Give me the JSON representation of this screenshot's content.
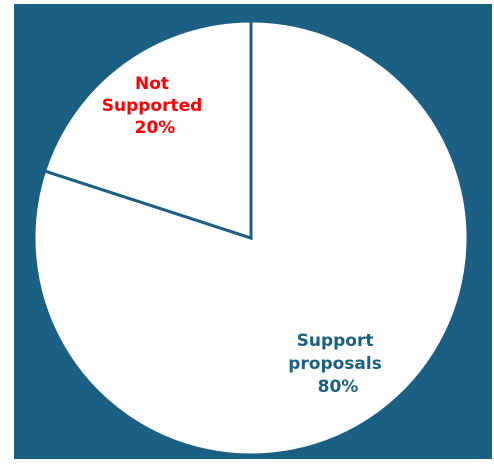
{
  "chart_data": {
    "type": "pie",
    "slices": [
      {
        "label_lines": [
          "Not",
          "Supported"
        ],
        "percent_label": "20%",
        "value": 20,
        "label_color": "#ff0000"
      },
      {
        "label_lines": [
          "Support",
          "proposals"
        ],
        "percent_label": "80%",
        "value": 80,
        "label_color": "#1b5f83"
      }
    ],
    "slice_fill": "#ffffff",
    "slice_edge_color": "#1b5f83",
    "background": "#1b5f83"
  }
}
